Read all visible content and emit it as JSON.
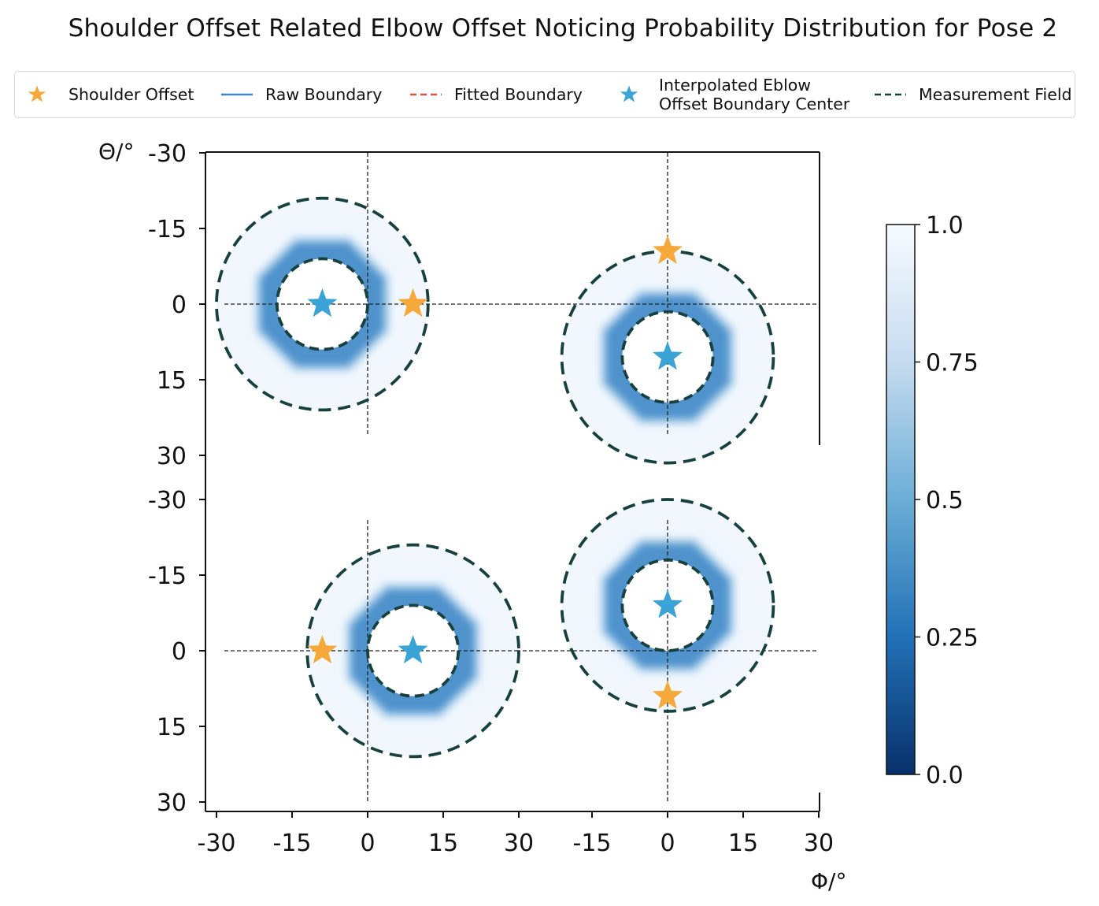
{
  "chart_data": {
    "type": "heatmap",
    "title": "Shoulder Offset Related Elbow Offset Noticing Probability Distribution for Pose 2",
    "xlabel": "Φ/°",
    "ylabel": "Θ/°",
    "x_tick_labels": [
      "-30",
      "-15",
      "0",
      "15",
      "30",
      "-15",
      "0",
      "15",
      "30"
    ],
    "y_tick_labels_top": [
      "-30",
      "-15",
      "0",
      "15",
      "30"
    ],
    "y_tick_labels_bottom": [
      "-30",
      "-15",
      "0",
      "15",
      "30"
    ],
    "xlim": [
      -30,
      30
    ],
    "ylim": [
      -30,
      30
    ],
    "colorbar": {
      "range": [
        0.0,
        1.0
      ],
      "tick_labels": [
        "1.0",
        "0.75",
        "0.5",
        "0.25",
        "0.0"
      ],
      "colormap": "Blues_r",
      "low_color": "#08306b",
      "high_color": "#f7fbff"
    },
    "legend": [
      {
        "label": "Shoulder Offset",
        "symbol": "star",
        "color": "#f4a93a"
      },
      {
        "label": "Raw Boundary",
        "symbol": "solid-line",
        "color": "#3f88c5"
      },
      {
        "label": "Fitted Boundary",
        "symbol": "dashed-line",
        "color": "#d9534f"
      },
      {
        "label_line1": "Interpolated Eblow",
        "label_line2": "Offset Boundary Center",
        "symbol": "star",
        "color": "#3ba3d6"
      },
      {
        "label": "Measurement Field",
        "symbol": "dashed-line",
        "color": "#17403f"
      }
    ],
    "panels": [
      {
        "name": "top-left",
        "shoulder_offset": [
          9,
          0
        ],
        "boundary_center": [
          -9,
          0
        ],
        "inner_radius": 9,
        "outer_radius": 21
      },
      {
        "name": "top-right",
        "shoulder_offset": [
          0,
          -10.5
        ],
        "boundary_center": [
          0,
          10.5
        ],
        "inner_radius": 9,
        "outer_radius": 21
      },
      {
        "name": "bottom-left",
        "shoulder_offset": [
          -9,
          0
        ],
        "boundary_center": [
          9,
          0
        ],
        "inner_radius": 9,
        "outer_radius": 21
      },
      {
        "name": "bottom-right",
        "shoulder_offset": [
          0,
          9
        ],
        "boundary_center": [
          0,
          -9
        ],
        "inner_radius": 9,
        "outer_radius": 21
      }
    ]
  }
}
